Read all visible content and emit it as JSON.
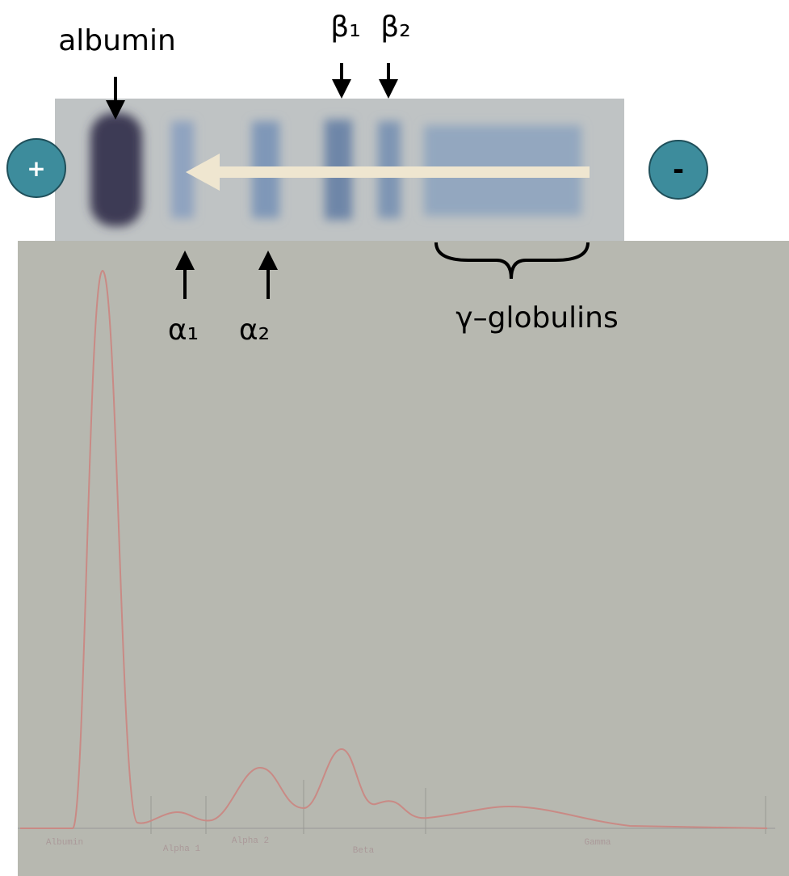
{
  "labels": {
    "albumin": "albumin",
    "beta1": "β₁",
    "beta2": "β₂",
    "alpha1": "α₁",
    "alpha2": "α₂",
    "gamma": "γ–globulins",
    "anode": "+",
    "cathode": "-"
  },
  "trace_labels": [
    "Albumin",
    "Alpha 1",
    "Alpha 2",
    "Beta",
    "Gamma"
  ]
}
